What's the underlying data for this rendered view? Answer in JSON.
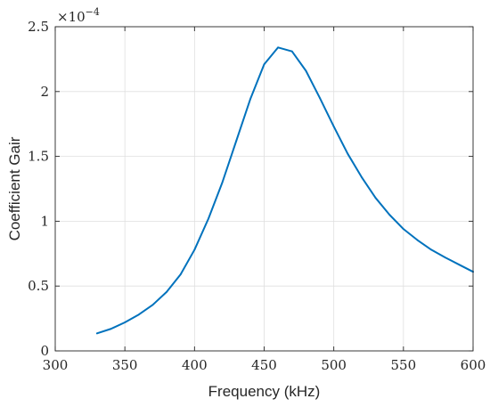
{
  "chart_data": {
    "type": "line",
    "title": "",
    "xlabel": "Frequency (kHz)",
    "ylabel": "Coefficient Gair",
    "xlim": [
      300,
      600
    ],
    "ylim": [
      0,
      2.5
    ],
    "x_ticks": [
      300,
      350,
      400,
      450,
      500,
      550,
      600
    ],
    "x_tick_labels": [
      "300",
      "350",
      "400",
      "450",
      "500",
      "550",
      "600"
    ],
    "y_ticks": [
      0,
      0.5,
      1,
      1.5,
      2,
      2.5
    ],
    "y_tick_labels": [
      "0",
      "0.5",
      "1",
      "1.5",
      "2",
      "2.5"
    ],
    "y_exponent_base": "×10",
    "y_exponent_power": "−4",
    "grid": true,
    "legend": "none",
    "series": [
      {
        "color": "#0072BD",
        "x": [
          330,
          340,
          350,
          360,
          370,
          380,
          390,
          400,
          410,
          420,
          430,
          440,
          450,
          460,
          470,
          480,
          490,
          500,
          510,
          520,
          530,
          540,
          550,
          560,
          570,
          580,
          590,
          600
        ],
        "y": [
          0.135,
          0.17,
          0.22,
          0.28,
          0.355,
          0.455,
          0.59,
          0.78,
          1.02,
          1.3,
          1.62,
          1.94,
          2.21,
          2.34,
          2.31,
          2.16,
          1.95,
          1.73,
          1.52,
          1.34,
          1.18,
          1.05,
          0.94,
          0.855,
          0.78,
          0.72,
          0.665,
          0.61
        ]
      }
    ]
  }
}
